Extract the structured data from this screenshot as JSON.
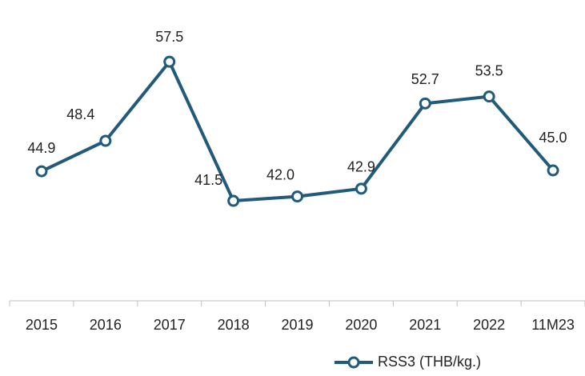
{
  "chart_data": {
    "type": "line",
    "categories": [
      "2015",
      "2016",
      "2017",
      "2018",
      "2019",
      "2020",
      "2021",
      "2022",
      "11M23"
    ],
    "series": [
      {
        "name": "RSS3 (THB/kg.)",
        "color": "#215a7b",
        "values": [
          44.9,
          48.4,
          57.5,
          41.5,
          42.0,
          42.9,
          52.7,
          53.5,
          45.0
        ],
        "value_labels": [
          "44.9",
          "48.4",
          "57.5",
          "41.5",
          "42.0",
          "42.9",
          "52.7",
          "53.5",
          "45.0"
        ]
      }
    ],
    "ylim": [
      30,
      60
    ],
    "legend": "bottom"
  }
}
